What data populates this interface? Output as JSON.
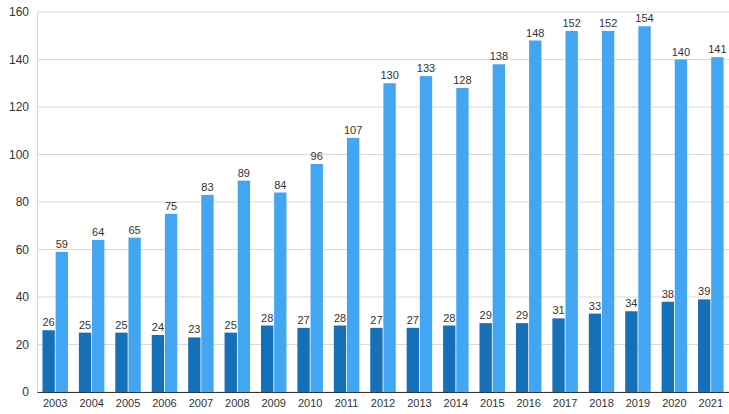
{
  "chart_data": {
    "type": "bar",
    "categories": [
      "2003",
      "2004",
      "2005",
      "2006",
      "2007",
      "2008",
      "2009",
      "2010",
      "2011",
      "2012",
      "2013",
      "2014",
      "2015",
      "2016",
      "2017",
      "2018",
      "2019",
      "2020",
      "2021"
    ],
    "series": [
      {
        "color": "#1570b8",
        "values": [
          26,
          25,
          25,
          24,
          23,
          25,
          28,
          27,
          28,
          27,
          27,
          28,
          29,
          29,
          31,
          33,
          34,
          38,
          39
        ]
      },
      {
        "color": "#42a6f2",
        "values": [
          59,
          64,
          65,
          75,
          83,
          89,
          84,
          96,
          107,
          130,
          133,
          128,
          138,
          148,
          152,
          152,
          154,
          140,
          141
        ]
      }
    ],
    "ylim": [
      0,
      160
    ],
    "yticks": [
      0,
      20,
      40,
      60,
      80,
      100,
      120,
      140,
      160
    ],
    "grid": true,
    "data_labels": true
  }
}
